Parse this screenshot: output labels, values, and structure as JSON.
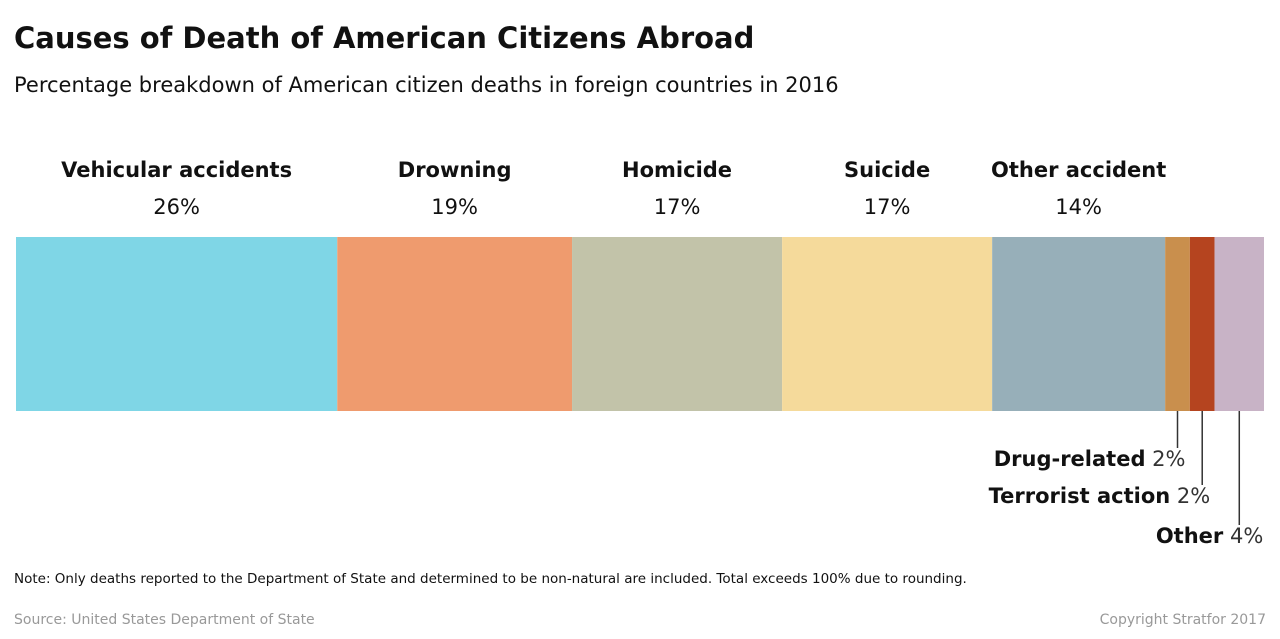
{
  "chart_data": {
    "type": "stacked_bar",
    "title": "Causes of Death of American Citizens Abroad",
    "subtitle": "Percentage breakdown of American citizen deaths in foreign countries in 2016",
    "categories": [
      "Vehicular accidents",
      "Drowning",
      "Homicide",
      "Suicide",
      "Other accident",
      "Drug-related",
      "Terrorist action",
      "Other"
    ],
    "values": [
      26,
      19,
      17,
      17,
      14,
      2,
      2,
      4
    ],
    "value_labels": [
      "26%",
      "19%",
      "17%",
      "17%",
      "14%",
      "2%",
      "2%",
      "4%"
    ],
    "colors": [
      "#7fd6e6",
      "#ef9b6e",
      "#c2c3a9",
      "#f5da9b",
      "#97afb9",
      "#c98f4d",
      "#b5441f",
      "#c8b3c6"
    ],
    "note": "Note:  Only deaths reported to the Department of State and determined to be non-natural are included. Total exceeds 100% due to rounding.",
    "source": "Source: United States Department of State",
    "copyright": "Copyright Stratfor 2017"
  }
}
